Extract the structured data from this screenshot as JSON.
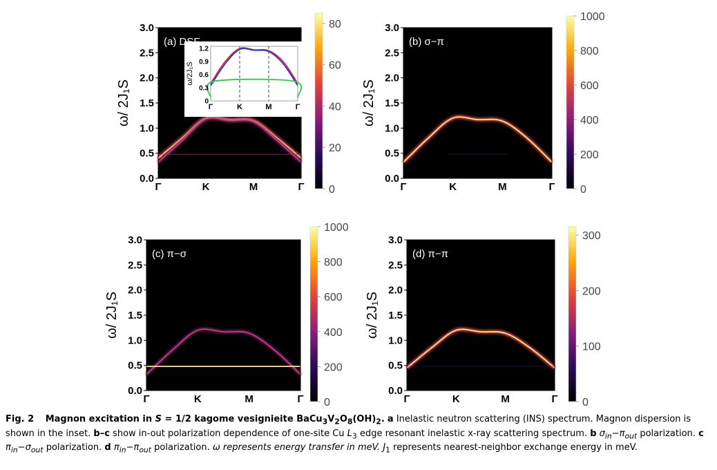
{
  "figure": {
    "ylabel": "ω/ 2J₁S",
    "yticks": [
      "0.0",
      "0.5",
      "1.0",
      "1.5",
      "2.0",
      "2.5",
      "3.0"
    ],
    "xticks": [
      "Γ",
      "K",
      "M",
      "Γ"
    ],
    "colors": {
      "background": "#000000",
      "curve_core": "#ffe49a",
      "curve_edge": "#c02f8e",
      "inset_red": "#e0202a",
      "inset_blue": "#1f3fd6",
      "inset_green": "#2ecc40"
    }
  },
  "chart_data": [
    {
      "type": "heatmap",
      "panel": "a",
      "label": "(a) DSF",
      "ylim": [
        0,
        3.0
      ],
      "x": [
        "Γ",
        "K",
        "M",
        "Γ"
      ],
      "colorbar": {
        "ticks": [
          "80",
          "60",
          "40",
          "20",
          "0"
        ],
        "range": [
          0,
          85
        ]
      },
      "bands": [
        {
          "name": "upper magnon",
          "points": [
            [
              0,
              0.4
            ],
            [
              0.5,
              0.8
            ],
            [
              1,
              1.2
            ],
            [
              1.5,
              1.17
            ],
            [
              2,
              1.15
            ],
            [
              2.5,
              0.8
            ],
            [
              3,
              0.4
            ]
          ],
          "intensity": "strong"
        },
        {
          "name": "lower magnon",
          "points": [
            [
              0,
              0.32
            ],
            [
              0.5,
              0.75
            ],
            [
              1,
              1.18
            ],
            [
              1.5,
              1.15
            ],
            [
              2,
              1.13
            ],
            [
              2.5,
              0.75
            ],
            [
              3,
              0.32
            ]
          ],
          "intensity": "medium"
        },
        {
          "name": "flat band",
          "points": [
            [
              0,
              0.48
            ],
            [
              3,
              0.48
            ]
          ],
          "intensity": "weak"
        }
      ],
      "inset": {
        "ylabel": "ω/2J₁S",
        "yticks": [
          "1.2",
          "0.9",
          "0.6",
          "0.3",
          "0"
        ],
        "ylim": [
          0,
          1.25
        ],
        "x": [
          "Γ",
          "K",
          "M",
          "Γ"
        ],
        "series": [
          {
            "color": "red",
            "points": [
              [
                0,
                0.4
              ],
              [
                0.5,
                0.9
              ],
              [
                1,
                1.2
              ],
              [
                1.5,
                1.17
              ],
              [
                2,
                1.15
              ],
              [
                2.5,
                0.9
              ],
              [
                3,
                0.4
              ]
            ]
          },
          {
            "color": "blue",
            "points": [
              [
                0,
                0.35
              ],
              [
                0.5,
                0.85
              ],
              [
                1,
                1.18
              ],
              [
                1.5,
                1.16
              ],
              [
                2,
                1.13
              ],
              [
                2.5,
                0.85
              ],
              [
                3,
                0.35
              ]
            ]
          },
          {
            "color": "green",
            "points": [
              [
                0,
                0.08
              ],
              [
                0.12,
                0.45
              ],
              [
                2.88,
                0.45
              ],
              [
                3,
                0.08
              ]
            ]
          }
        ]
      }
    },
    {
      "type": "heatmap",
      "panel": "b",
      "label": "(b) σ−π",
      "ylim": [
        0,
        3.0
      ],
      "x": [
        "Γ",
        "K",
        "M",
        "Γ"
      ],
      "colorbar": {
        "ticks": [
          "1000",
          "800",
          "600",
          "400",
          "200",
          "0"
        ],
        "range": [
          0,
          1000
        ]
      },
      "bands": [
        {
          "name": "magnon",
          "points": [
            [
              0,
              0.32
            ],
            [
              0.5,
              0.8
            ],
            [
              1,
              1.2
            ],
            [
              1.5,
              1.17
            ],
            [
              2,
              1.14
            ],
            [
              2.5,
              0.8
            ],
            [
              3,
              0.32
            ]
          ],
          "intensity": "strong"
        },
        {
          "name": "flat band",
          "points": [
            [
              0.9,
              0.48
            ],
            [
              2.1,
              0.48
            ]
          ],
          "intensity": "faint"
        }
      ]
    },
    {
      "type": "heatmap",
      "panel": "c",
      "label": "(c) π−σ",
      "ylim": [
        0,
        3.0
      ],
      "x": [
        "Γ",
        "K",
        "M",
        "Γ"
      ],
      "colorbar": {
        "ticks": [
          "1000",
          "800",
          "600",
          "400",
          "200",
          "0"
        ],
        "range": [
          0,
          1000
        ]
      },
      "bands": [
        {
          "name": "magnon",
          "points": [
            [
              0,
              0.32
            ],
            [
              0.5,
              0.8
            ],
            [
              1,
              1.2
            ],
            [
              1.5,
              1.17
            ],
            [
              2,
              1.14
            ],
            [
              2.5,
              0.8
            ],
            [
              3,
              0.32
            ]
          ],
          "intensity": "medium"
        },
        {
          "name": "flat band",
          "points": [
            [
              0,
              0.48
            ],
            [
              3,
              0.48
            ]
          ],
          "intensity": "strong"
        }
      ]
    },
    {
      "type": "heatmap",
      "panel": "d",
      "label": "(d) π−π",
      "ylim": [
        0,
        3.0
      ],
      "x": [
        "Γ",
        "K",
        "M",
        "Γ"
      ],
      "colorbar": {
        "ticks": [
          "300",
          "200",
          "100",
          "0"
        ],
        "range": [
          0,
          315
        ]
      },
      "bands": [
        {
          "name": "magnon",
          "points": [
            [
              0,
              0.45
            ],
            [
              0.5,
              0.85
            ],
            [
              1,
              1.2
            ],
            [
              1.5,
              1.17
            ],
            [
              2,
              1.14
            ],
            [
              2.5,
              0.85
            ],
            [
              3,
              0.45
            ]
          ],
          "intensity": "strong"
        },
        {
          "name": "flat band",
          "points": [
            [
              0,
              0.48
            ],
            [
              3,
              0.48
            ]
          ],
          "intensity": "faint"
        }
      ]
    }
  ],
  "caption": {
    "fig_no": "Fig. 2",
    "title_pre": "Magnon excitation in ",
    "title_s": "S",
    "title_mid": " = 1/2 kagome vesignieite BaCu",
    "title_sub1": "3",
    "title_v": "V",
    "title_sub2": "2",
    "title_o": "O",
    "title_sub3": "8",
    "title_oh": "(OH)",
    "title_sub4": "2",
    "title_end": ".",
    "a_letter": "a",
    "a_text": " Inelastic neutron scattering (INS) spectrum. Magnon dispersion is shown in the inset. ",
    "bc_letter": "b–c",
    "bc_text": " show in-out polarization dependence of one-site Cu ",
    "bc_L": "L",
    "bc_Lsub": "3",
    "bc_text2": " edge resonant inelastic x-ray scattering spectrum. ",
    "b_letter": "b",
    "b_pol": " σ",
    "b_sub1": "in",
    "b_dash": "−π",
    "b_sub2": "out",
    "b_tail": " polarization. ",
    "c_letter": "c",
    "c_pol": " π",
    "c_sub1": "in",
    "c_dash": "−σ",
    "c_sub2": "out",
    "c_tail": " polarization. ",
    "d_letter": "d",
    "d_pol": " π",
    "d_sub1": "in",
    "d_dash": "−π",
    "d_sub2": "out",
    "d_tail": " polarization. ",
    "omega_text": "ω represents energy transfer in meV. ",
    "j_sym": "J",
    "j_sub": "1",
    "j_text": " represents nearest-neighbor exchange energy in meV."
  }
}
